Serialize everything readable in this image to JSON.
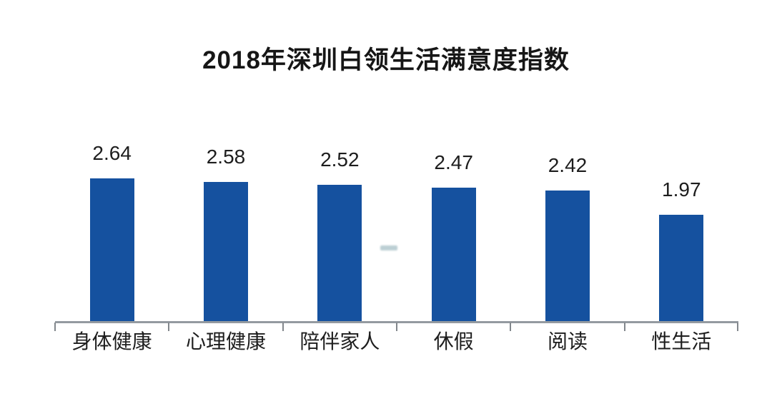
{
  "chart_data": {
    "type": "bar",
    "title": "2018年深圳白领生活满意度指数",
    "categories": [
      "身体健康",
      "心理健康",
      "陪伴家人",
      "休假",
      "阅读",
      "性生活"
    ],
    "values": [
      2.64,
      2.58,
      2.52,
      2.47,
      2.42,
      1.97
    ],
    "xlabel": "",
    "ylabel": "",
    "ylim": [
      0,
      3
    ],
    "grid": false,
    "legend": false,
    "value_labels_shown": true,
    "value_label_decimals": 2,
    "colors": {
      "bar": "#15519f",
      "axis_line": "#949aa0",
      "axis_tick": "#82878c",
      "text": "#1d1d1d",
      "title": "#161616",
      "background": "#ffffff",
      "watermark_artifact": "#bccfd4"
    }
  }
}
